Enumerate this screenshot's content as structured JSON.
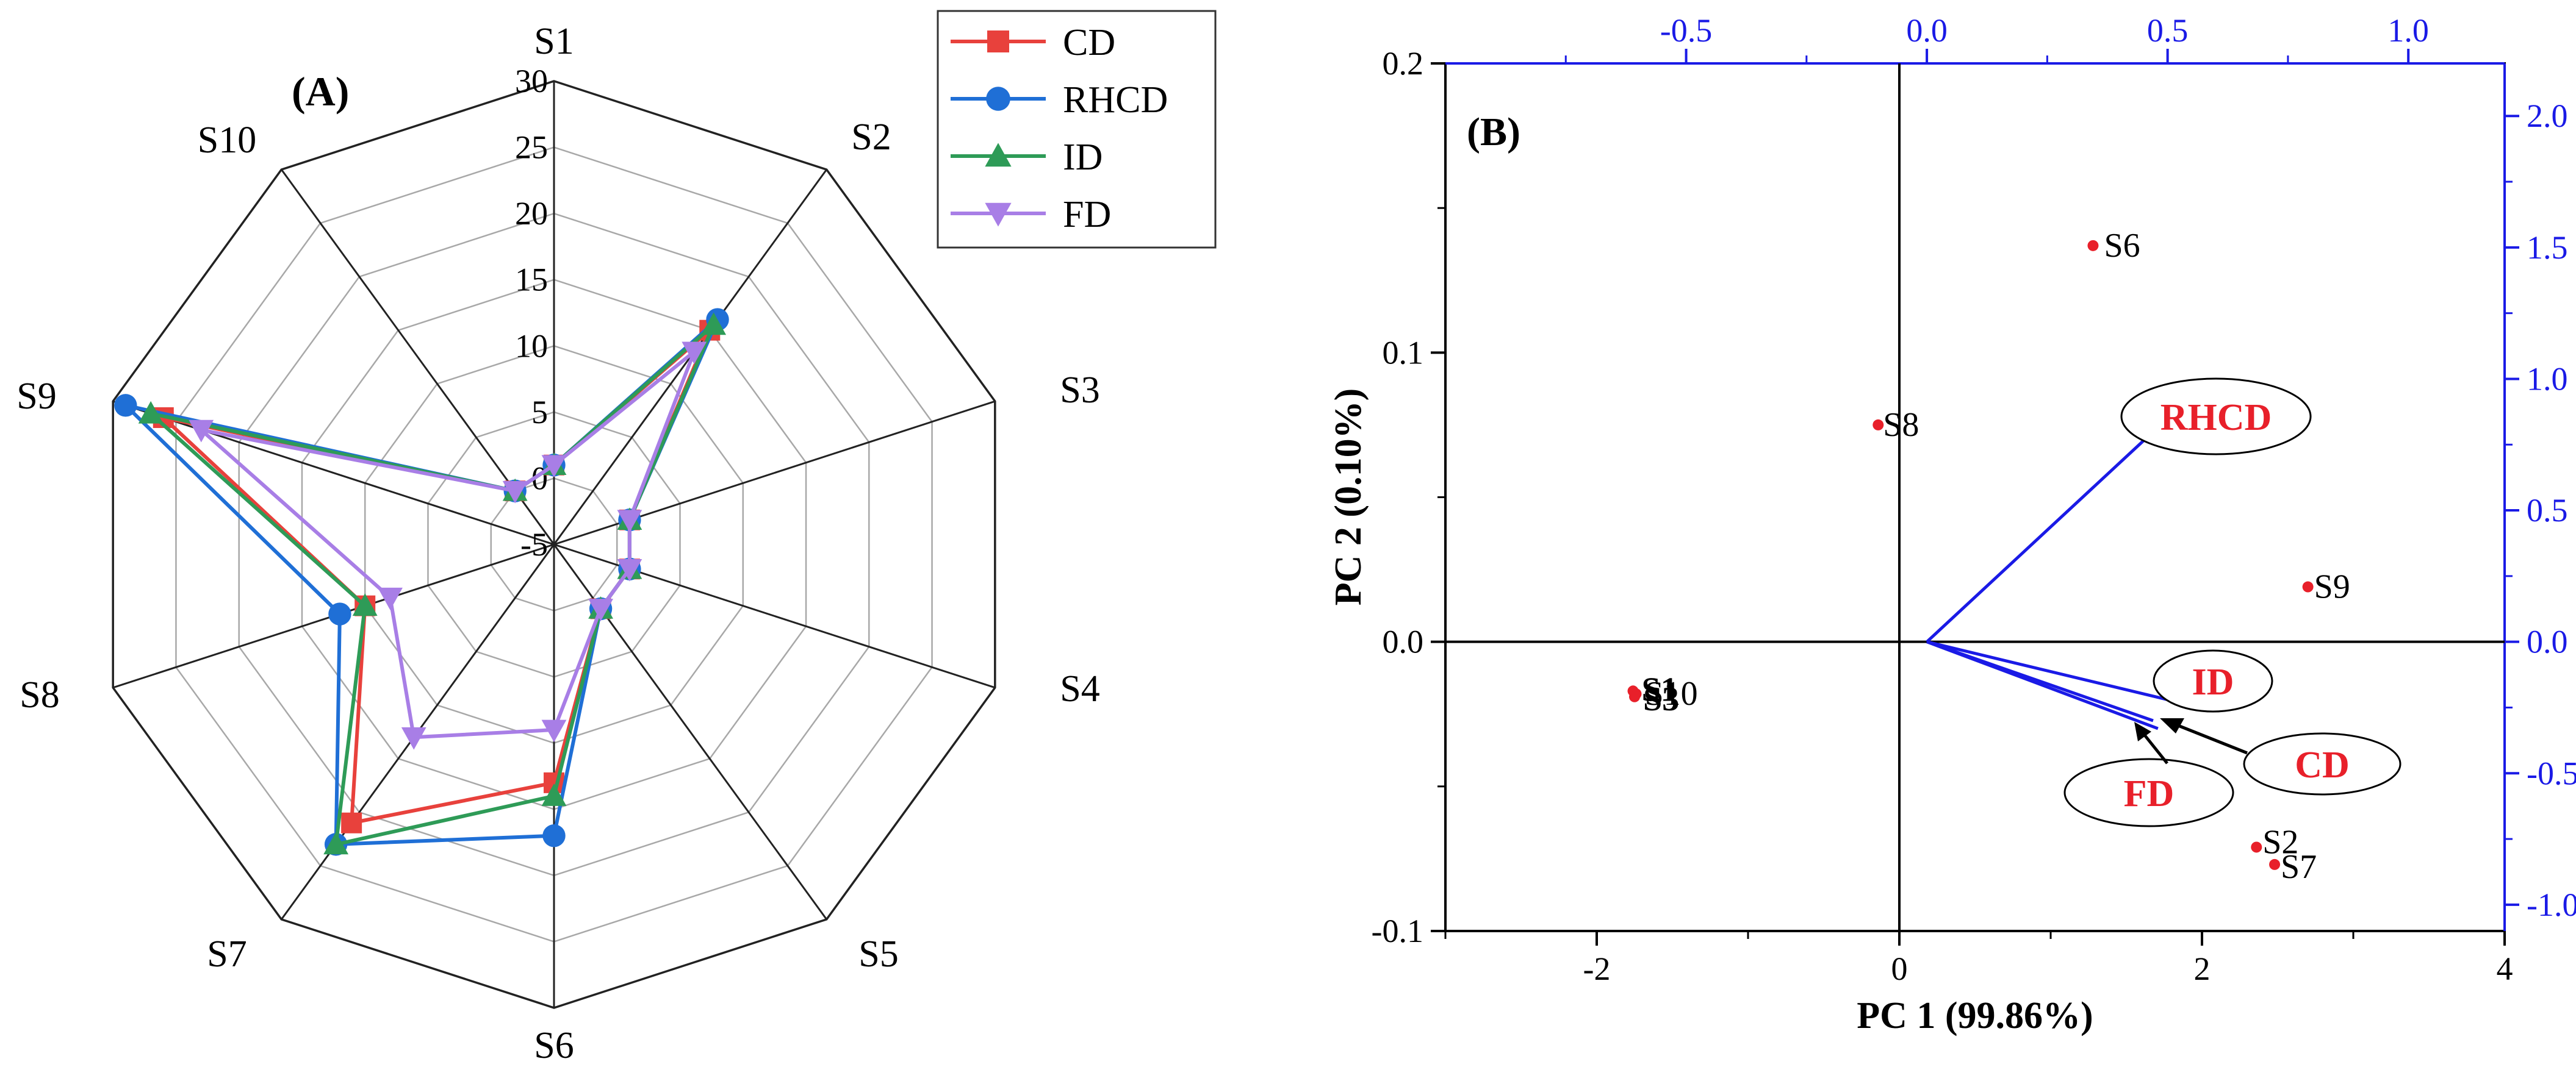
{
  "panel_a": {
    "label": "(A)",
    "chart_data": {
      "type": "radar",
      "categories": [
        "S1",
        "S2",
        "S3",
        "S4",
        "S5",
        "S6",
        "S7",
        "S8",
        "S9",
        "S10"
      ],
      "rlim": [
        -5,
        30
      ],
      "r_ticks": [
        -5,
        0,
        5,
        10,
        15,
        20,
        25,
        30
      ],
      "r_tick_labels": [
        "-5",
        "0",
        "5",
        "10",
        "15",
        "20",
        "25",
        "30"
      ],
      "series": [
        {
          "name": "CD",
          "color": "#e8413c",
          "marker": "square",
          "values": [
            1,
            15,
            1,
            1,
            1,
            13,
            21,
            10,
            26,
            0
          ]
        },
        {
          "name": "RHCD",
          "color": "#1f6fd6",
          "marker": "circle",
          "values": [
            1,
            16,
            1,
            1,
            1,
            17,
            23,
            12,
            29,
            0
          ]
        },
        {
          "name": "ID",
          "color": "#2e9b57",
          "marker": "triangle-up",
          "values": [
            1,
            15.5,
            1,
            1,
            1,
            14,
            23,
            10,
            27,
            0
          ]
        },
        {
          "name": "FD",
          "color": "#a87ee6",
          "marker": "triangle-down",
          "values": [
            1,
            13,
            1,
            1,
            1,
            9,
            13,
            8,
            23,
            0
          ]
        }
      ],
      "legend": "top-right"
    }
  },
  "panel_b": {
    "label": "(B)",
    "chart_data": {
      "type": "biplot",
      "xlabel": "PC 1 (99.86%)",
      "ylabel": "PC 2 (0.10%)",
      "xlim": [
        -3,
        4
      ],
      "ylim": [
        -0.1,
        0.2
      ],
      "x_ticks": [
        -2,
        0,
        2,
        4
      ],
      "x_tick_labels": [
        "-2",
        "0",
        "2",
        "4"
      ],
      "y_ticks": [
        -0.1,
        0.0,
        0.1,
        0.2
      ],
      "y_tick_labels": [
        "-0.1",
        "0.0",
        "0.1",
        "0.2"
      ],
      "top_xlim": [
        -1.0,
        1.2
      ],
      "top_ticks": [
        -0.5,
        0.0,
        0.5,
        1.0
      ],
      "top_tick_labels": [
        "-0.5",
        "0.0",
        "0.5",
        "1.0"
      ],
      "right_ylim": [
        -1.1,
        2.2
      ],
      "right_ticks": [
        -1.0,
        -0.5,
        0.0,
        0.5,
        1.0,
        1.5,
        2.0
      ],
      "right_tick_labels": [
        "-1.0",
        "-0.5",
        "0.0",
        "0.5",
        "1.0",
        "1.5",
        "2.0"
      ],
      "score_color": "#e8202a",
      "loading_color": "#1a1ae6",
      "loading_label_color": "#e8202a",
      "scores": [
        {
          "label": "S6",
          "x": 1.28,
          "y": 0.137
        },
        {
          "label": "S8",
          "x": -0.14,
          "y": 0.075
        },
        {
          "label": "S9",
          "x": 2.7,
          "y": 0.019
        },
        {
          "label": "S1",
          "x": -1.76,
          "y": -0.017
        },
        {
          "label": "S10",
          "x": -1.74,
          "y": -0.018
        },
        {
          "label": "S3",
          "x": -1.75,
          "y": -0.019
        },
        {
          "label": "S2",
          "x": 2.36,
          "y": -0.071
        },
        {
          "label": "S7",
          "x": 2.48,
          "y": -0.077
        }
      ],
      "loadings": [
        {
          "label": "RHCD",
          "x": 0.5,
          "y": 0.85
        },
        {
          "label": "ID",
          "x": 0.5,
          "y": -0.22
        },
        {
          "label": "CD",
          "x": 0.48,
          "y": -0.33
        },
        {
          "label": "FD",
          "x": 0.47,
          "y": -0.3
        }
      ]
    }
  }
}
